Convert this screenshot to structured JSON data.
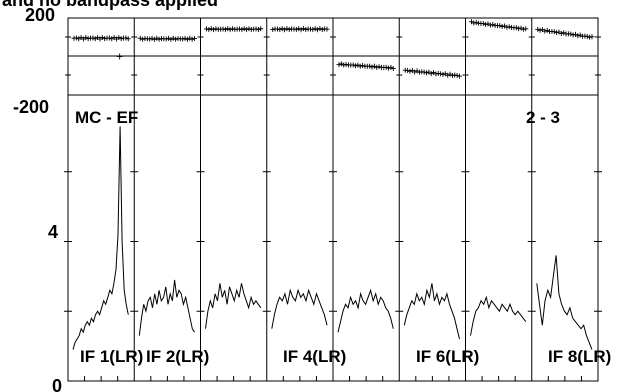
{
  "chart_data": {
    "type": "line",
    "title": "and no bandpass applied",
    "top_panel": {
      "ticks": [
        {
          "value": 200,
          "label": "200"
        },
        {
          "value": -200,
          "label": "-200"
        }
      ],
      "ylim": [
        -200,
        200
      ],
      "phase_series": [
        {
          "level": 95,
          "slope": 0,
          "noise": 8
        },
        {
          "level": 92,
          "slope": 0,
          "noise": 6
        },
        {
          "level": 142,
          "slope": 0,
          "noise": 5
        },
        {
          "level": 142,
          "slope": 0,
          "noise": 6
        },
        {
          "level": -40,
          "slope": -10,
          "noise": 5
        },
        {
          "level": -72,
          "slope": -14,
          "noise": 7
        },
        {
          "level": 178,
          "slope": -18,
          "noise": 5
        },
        {
          "level": 140,
          "slope": -20,
          "noise": 6
        }
      ]
    },
    "bottom_panel": {
      "ticks": [
        {
          "value": 4,
          "label": "4"
        },
        {
          "value": 0,
          "label": "0"
        }
      ],
      "ylim": [
        0,
        8.2
      ],
      "baseline_label": "MC - EF",
      "channel_label": "2 - 3",
      "if_labels": [
        "IF 1(LR)",
        "IF 2(LR)",
        "IF 4(LR)",
        "IF 6(LR)",
        "IF 8(LR)"
      ],
      "amplitude_series": [
        {
          "values": [
            0.9,
            1.1,
            1.2,
            1.3,
            1.5,
            1.4,
            1.6,
            1.7,
            1.6,
            1.8,
            1.7,
            1.9,
            2.0,
            1.9,
            2.1,
            2.3,
            2.2,
            2.4,
            2.6,
            2.5,
            2.8,
            3.2,
            4.2,
            7.3,
            4.0,
            2.6,
            2.2,
            1.9
          ]
        },
        {
          "values": [
            1.3,
            1.8,
            2.2,
            2.0,
            2.3,
            2.4,
            2.1,
            2.5,
            2.2,
            2.6,
            2.3,
            2.4,
            2.7,
            2.2,
            2.5,
            2.3,
            2.9,
            2.4,
            2.6,
            2.5,
            2.2,
            2.4,
            2.1,
            1.8,
            1.5,
            1.4
          ]
        },
        {
          "values": [
            1.5,
            2.0,
            2.3,
            2.1,
            2.5,
            2.3,
            2.8,
            2.4,
            2.6,
            2.2,
            2.7,
            2.5,
            2.3,
            2.6,
            2.4,
            2.8,
            2.5,
            2.3,
            2.1,
            2.4,
            2.2,
            2.3,
            2.2,
            2.1
          ]
        },
        {
          "values": [
            1.5,
            1.9,
            2.2,
            2.4,
            2.3,
            2.5,
            2.2,
            2.6,
            2.4,
            2.3,
            2.6,
            2.4,
            2.5,
            2.3,
            2.6,
            2.4,
            2.2,
            2.5,
            2.3,
            2.1,
            1.9,
            1.6
          ]
        },
        {
          "values": [
            1.4,
            1.7,
            2.0,
            2.2,
            2.1,
            2.4,
            2.2,
            2.3,
            2.1,
            2.5,
            2.3,
            2.2,
            2.4,
            2.6,
            2.3,
            2.5,
            2.2,
            2.4,
            2.3,
            2.1,
            2.0,
            1.8,
            1.5
          ]
        },
        {
          "values": [
            1.6,
            1.9,
            2.1,
            2.3,
            2.2,
            2.5,
            2.3,
            2.4,
            2.2,
            2.6,
            2.4,
            2.8,
            2.3,
            2.5,
            2.2,
            2.4,
            2.3,
            2.5,
            2.2,
            2.0,
            1.8,
            1.5,
            1.2
          ]
        },
        {
          "values": [
            1.3,
            1.7,
            2.0,
            2.1,
            2.3,
            2.2,
            2.4,
            2.1,
            2.3,
            2.2,
            2.1,
            2.0,
            2.2,
            2.1,
            2.0,
            2.2,
            2.0,
            1.9,
            2.0,
            1.9,
            1.8,
            1.7
          ]
        },
        {
          "values": [
            2.8,
            2.2,
            1.6,
            2.3,
            2.6,
            2.4,
            3.0,
            3.6,
            2.5,
            2.2,
            2.0,
            1.9,
            2.1,
            1.8,
            1.7,
            1.6,
            1.5,
            1.6,
            1.3,
            1.1,
            0.9
          ]
        }
      ]
    }
  }
}
